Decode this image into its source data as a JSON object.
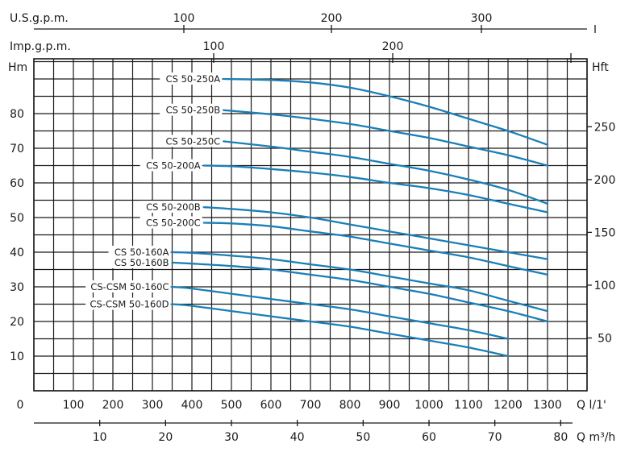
{
  "chart_data": {
    "type": "line",
    "title": "",
    "axes": {
      "y_left": {
        "label": "Hm",
        "ticks": [
          "10",
          "20",
          "30",
          "40",
          "50",
          "60",
          "70",
          "80"
        ],
        "ylim": [
          0,
          95
        ]
      },
      "y_right": {
        "label": "Hft",
        "ticks": [
          "50",
          "100",
          "150",
          "200",
          "250"
        ]
      },
      "x_bottom_lpm": {
        "label": "Q  l/1'",
        "ticks": [
          "0",
          "100",
          "200",
          "300",
          "400",
          "500",
          "600",
          "700",
          "800",
          "900",
          "1000",
          "1100",
          "1200",
          "1300"
        ],
        "xlim": [
          0,
          1400
        ]
      },
      "x_bottom_m3h": {
        "label": "Q  m³/h",
        "ticks": [
          "10",
          "20",
          "30",
          "40",
          "50",
          "60",
          "70",
          "80"
        ]
      },
      "x_top_usgpm": {
        "label": "U.S.g.p.m.",
        "ticks": [
          "100",
          "200",
          "300"
        ]
      },
      "x_top_impgpm": {
        "label": "Imp.g.p.m.",
        "ticks": [
          "100",
          "200"
        ]
      }
    },
    "grid": true,
    "x_unit": "l/min",
    "y_unit": "m",
    "series": [
      {
        "name": "CS 50-250A",
        "x": [
          480,
          600,
          700,
          800,
          900,
          1000,
          1100,
          1200,
          1300
        ],
        "y": [
          90,
          89.7,
          89,
          87.5,
          85,
          82,
          78.5,
          75,
          71
        ]
      },
      {
        "name": "CS 50-250B",
        "x": [
          480,
          600,
          700,
          800,
          900,
          1000,
          1100,
          1200,
          1300
        ],
        "y": [
          81,
          79.8,
          78.5,
          77,
          75,
          73,
          70.5,
          68,
          65
        ]
      },
      {
        "name": "CS 50-250C",
        "x": [
          480,
          600,
          700,
          800,
          900,
          1000,
          1100,
          1200,
          1300
        ],
        "y": [
          72,
          70.5,
          69,
          67.5,
          65.5,
          63.5,
          61,
          58,
          54
        ]
      },
      {
        "name": "CS 50-200A",
        "x": [
          430,
          500,
          600,
          700,
          800,
          900,
          1000,
          1100,
          1200,
          1300
        ],
        "y": [
          65,
          64.8,
          64,
          63,
          61.7,
          60,
          58.5,
          56.5,
          54,
          51.5
        ]
      },
      {
        "name": "CS 50-200B",
        "x": [
          430,
          500,
          600,
          700,
          800,
          900,
          1000,
          1100,
          1200,
          1300
        ],
        "y": [
          53,
          52.5,
          51.5,
          50,
          48,
          46,
          44,
          42,
          40,
          38
        ]
      },
      {
        "name": "CS 50-200C",
        "x": [
          430,
          500,
          600,
          700,
          800,
          900,
          1000,
          1100,
          1200,
          1300
        ],
        "y": [
          48.5,
          48.3,
          47.5,
          46,
          44.5,
          42.5,
          40.5,
          38.5,
          36,
          33.5
        ]
      },
      {
        "name": "CS 50-160A",
        "x": [
          350,
          400,
          500,
          600,
          700,
          800,
          900,
          1000,
          1100,
          1200,
          1300
        ],
        "y": [
          40,
          39.8,
          39,
          38,
          36.5,
          35,
          33,
          31,
          29,
          26,
          23
        ]
      },
      {
        "name": "CS 50-160B",
        "x": [
          350,
          400,
          500,
          600,
          700,
          800,
          900,
          1000,
          1100,
          1200,
          1300
        ],
        "y": [
          37,
          36.7,
          36,
          35,
          33.5,
          32,
          30,
          28,
          25.5,
          23,
          20
        ]
      },
      {
        "name": "CS-CSM 50-160C",
        "x": [
          350,
          400,
          500,
          600,
          700,
          800,
          900,
          1000,
          1100,
          1200
        ],
        "y": [
          30,
          29.5,
          28,
          26.5,
          25,
          23.5,
          21.5,
          19.5,
          17.5,
          15
        ]
      },
      {
        "name": "CS-CSM 50-160D",
        "x": [
          350,
          400,
          500,
          600,
          700,
          800,
          900,
          1000,
          1100,
          1200
        ],
        "y": [
          25,
          24.5,
          23,
          21.5,
          20,
          18.5,
          16.5,
          14.5,
          12.5,
          10
        ]
      }
    ],
    "colors": {
      "curve": "#1a7fb8",
      "grid": "#1a1a1a",
      "text": "#1a1a1a"
    }
  }
}
